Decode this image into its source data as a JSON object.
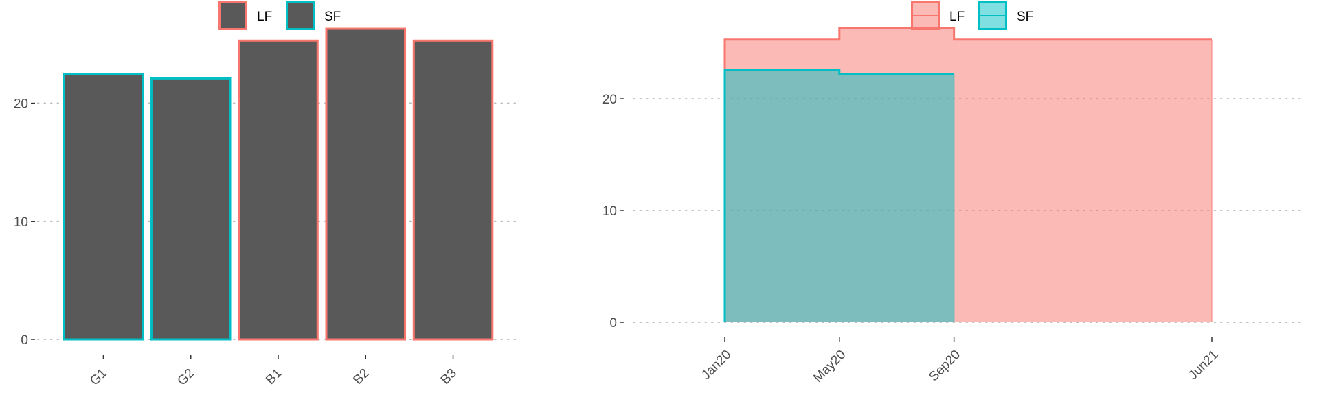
{
  "chart_data": [
    {
      "type": "bar",
      "categories": [
        "G1",
        "G2",
        "B1",
        "B2",
        "B3"
      ],
      "values": [
        22.5,
        22.1,
        25.3,
        26.3,
        25.3
      ],
      "outline_group": [
        "SF",
        "SF",
        "LF",
        "LF",
        "LF"
      ],
      "ylim": [
        0,
        27
      ],
      "yticks": [
        0,
        10,
        20
      ],
      "grid": "horizontal dotted",
      "legend": {
        "position": "top",
        "entries": [
          {
            "label": "LF",
            "color": "#F8766D"
          },
          {
            "label": "SF",
            "color": "#00BFC4"
          }
        ]
      },
      "bar_fill": "#595959"
    },
    {
      "type": "area",
      "x_ticks": [
        "Jan20",
        "May20",
        "Sep20",
        "Jun21"
      ],
      "ylim": [
        0,
        27
      ],
      "yticks": [
        0,
        10,
        20
      ],
      "grid": "horizontal dotted",
      "legend": {
        "position": "top",
        "entries": [
          {
            "label": "LF",
            "color": "#F8766D"
          },
          {
            "label": "SF",
            "color": "#00BFC4"
          }
        ]
      },
      "series": [
        {
          "name": "LF",
          "color": "#F8766D",
          "fill": "#F8766D",
          "x": [
            "Jan20",
            "May20",
            "Sep20",
            "Jun21"
          ],
          "values": [
            25.3,
            26.3,
            25.3,
            25.3
          ]
        },
        {
          "name": "SF",
          "color": "#00BFC4",
          "fill": "#00BFC4",
          "x": [
            "Jan20",
            "May20",
            "Sep20"
          ],
          "values": [
            22.6,
            22.2,
            22.2
          ]
        }
      ]
    }
  ]
}
